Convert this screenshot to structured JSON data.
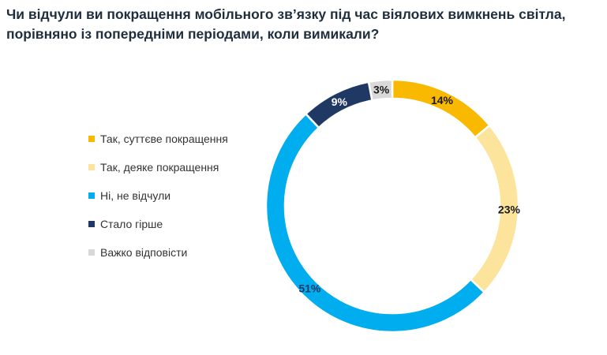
{
  "chart_data": {
    "type": "pie",
    "title": "Чи відчули ви покращення мобільного зв’язку під час віялових вимкнень світла, порівняно із попередніми періодами, коли вимикали?",
    "categories": [
      "Так, суттєве покращення",
      "Так, деяке покращення",
      "Ні, не відчули",
      "Стало гірше",
      "Важко відповісти"
    ],
    "values": [
      14,
      23,
      51,
      9,
      3
    ],
    "data_labels": [
      "14%",
      "23%",
      "51%",
      "9%",
      "3%"
    ],
    "colors": [
      "#f9b900",
      "#fde49c",
      "#00adee",
      "#1f3864",
      "#d9d9d9"
    ],
    "label_colors": [
      "#1a1a1a",
      "#1a1a1a",
      "#1f3864",
      "#ffffff",
      "#1a1a1a"
    ],
    "donut": true,
    "legend_position": "left"
  }
}
